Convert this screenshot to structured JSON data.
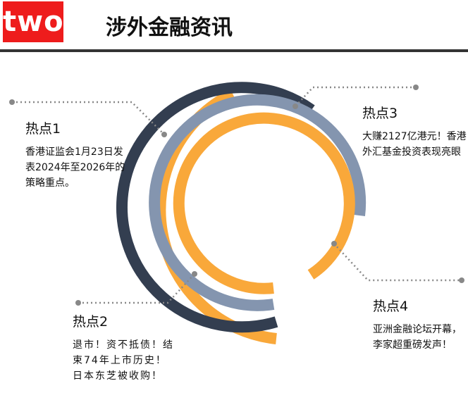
{
  "header": {
    "logo": "two",
    "title": "涉外金融资讯"
  },
  "colors": {
    "orange": "#f9a83a",
    "navy": "#333e50",
    "steel": "#8495af",
    "logo_red": "#ee1c1c",
    "rule": "#333333",
    "connector": "#888888"
  },
  "hotspots": [
    {
      "heading": "热点1",
      "body": "香港证监会1月23日发表2024年至2026年的策略重点。"
    },
    {
      "heading": "热点2",
      "body": "退市！资不抵债！结束74年上市历史！日本东芝被收购！"
    },
    {
      "heading": "热点3",
      "body": "大赚2127亿港元！香港外汇基金投资表现亮眼"
    },
    {
      "heading": "热点4",
      "body": "亚洲金融论坛开幕，李家超重磅发声！"
    }
  ]
}
